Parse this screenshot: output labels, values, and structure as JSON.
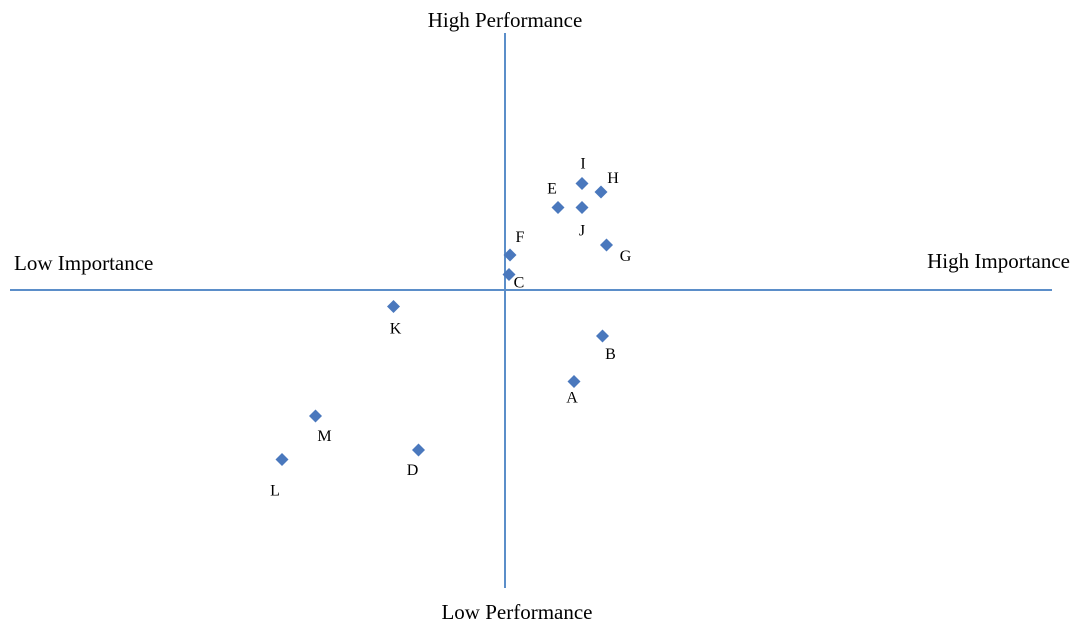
{
  "chart_data": {
    "type": "scatter",
    "title": "",
    "xlabel_left": "Low Importance",
    "xlabel_right": "High Importance",
    "ylabel_top": "High Performance",
    "ylabel_bottom": "Low Performance",
    "xlim": [
      -10,
      10
    ],
    "ylim": [
      -10,
      10
    ],
    "grid": false,
    "marker": "diamond",
    "marker_color": "#4a78bd",
    "axis_color": "#5b8ec9",
    "points": [
      {
        "label": "A",
        "x": 1.38,
        "y": -1.83
      },
      {
        "label": "B",
        "x": 1.95,
        "y": -0.92
      },
      {
        "label": "C",
        "x": 0.08,
        "y": 0.31
      },
      {
        "label": "D",
        "x": -1.73,
        "y": -3.2
      },
      {
        "label": "E",
        "x": 1.06,
        "y": 1.65
      },
      {
        "label": "F",
        "x": 0.1,
        "y": 0.7
      },
      {
        "label": "G",
        "x": 2.03,
        "y": 0.9
      },
      {
        "label": "H",
        "x": 1.92,
        "y": 1.96
      },
      {
        "label": "I",
        "x": 1.54,
        "y": 2.13
      },
      {
        "label": "J",
        "x": 1.54,
        "y": 1.65
      },
      {
        "label": "K",
        "x": -2.23,
        "y": -0.33
      },
      {
        "label": "L",
        "x": -4.46,
        "y": -3.39
      },
      {
        "label": "M",
        "x": -3.79,
        "y": -2.52
      }
    ]
  }
}
